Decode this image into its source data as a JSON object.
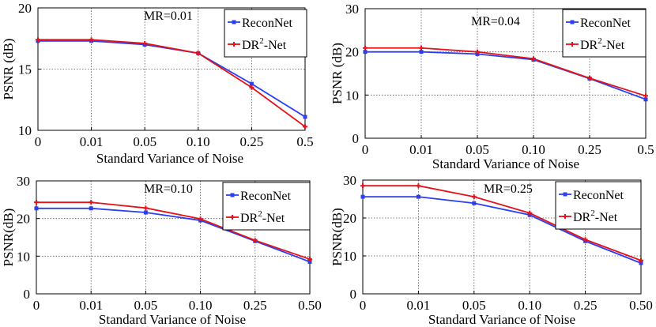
{
  "colors": {
    "reconnet": "#2b3ff2",
    "dr2net": "#e3121b",
    "grid": "#555555"
  },
  "chart_data": [
    {
      "type": "line",
      "title": "MR=0.01",
      "categories": [
        "0",
        "0.01",
        "0.05",
        "0.10",
        "0.25",
        "0.5"
      ],
      "xlabel": "Standard Variance of Noise",
      "ylabel": "PSNR (dB)",
      "ylim": [
        10,
        20
      ],
      "yticks": [
        "10",
        "15",
        "20"
      ],
      "legend_position": "top-right",
      "series": [
        {
          "name": "ReconNet",
          "values": [
            17.3,
            17.3,
            17.0,
            16.3,
            13.8,
            11.1
          ]
        },
        {
          "name_main": "DR",
          "name_sup": "2",
          "name_rest": "-Net",
          "values": [
            17.4,
            17.4,
            17.1,
            16.3,
            13.5,
            10.3
          ]
        }
      ]
    },
    {
      "type": "line",
      "title": "MR=0.04",
      "categories": [
        "0",
        "0.01",
        "0.05",
        "0.10",
        "0.25",
        "0.5"
      ],
      "xlabel": "Standard Variance of Noise",
      "ylabel": "PSNR (dB)",
      "ylim": [
        0,
        30
      ],
      "yticks": [
        "0",
        "10",
        "20",
        "30"
      ],
      "legend_position": "top-right",
      "series": [
        {
          "name": "ReconNet",
          "values": [
            20.0,
            20.0,
            19.5,
            18.2,
            13.8,
            9.0
          ]
        },
        {
          "name_main": "DR",
          "name_sup": "2",
          "name_rest": "-Net",
          "values": [
            20.9,
            20.9,
            20.0,
            18.4,
            13.9,
            9.8
          ]
        }
      ]
    },
    {
      "type": "line",
      "title": "MR=0.10",
      "categories": [
        "0",
        "0.01",
        "0.05",
        "0.10",
        "0.25",
        "0.50"
      ],
      "xlabel": "Standard Variance of Noise",
      "ylabel": "PSNR(dB)",
      "ylim": [
        0,
        30
      ],
      "yticks": [
        "0",
        "10",
        "20",
        "30"
      ],
      "legend_position": "top-right",
      "series": [
        {
          "name": "ReconNet",
          "values": [
            22.7,
            22.7,
            21.6,
            19.5,
            14.0,
            8.5
          ]
        },
        {
          "name_main": "DR",
          "name_sup": "2",
          "name_rest": "-Net",
          "values": [
            24.3,
            24.3,
            22.8,
            19.9,
            14.2,
            9.2
          ]
        }
      ]
    },
    {
      "type": "line",
      "title": "MR=0.25",
      "categories": [
        "0",
        "0.01",
        "0.05",
        "0.10",
        "0.25",
        "0.50"
      ],
      "xlabel": "Standard Variance of Noise",
      "ylabel": "PSNR(dB)",
      "ylim": [
        0,
        30
      ],
      "yticks": [
        "0",
        "10",
        "20",
        "30"
      ],
      "legend_position": "top-right",
      "series": [
        {
          "name": "ReconNet",
          "values": [
            25.6,
            25.6,
            23.9,
            20.8,
            13.9,
            8.1
          ]
        },
        {
          "name_main": "DR",
          "name_sup": "2",
          "name_rest": "-Net",
          "values": [
            28.5,
            28.5,
            25.6,
            21.3,
            14.3,
            8.8
          ]
        }
      ]
    }
  ]
}
